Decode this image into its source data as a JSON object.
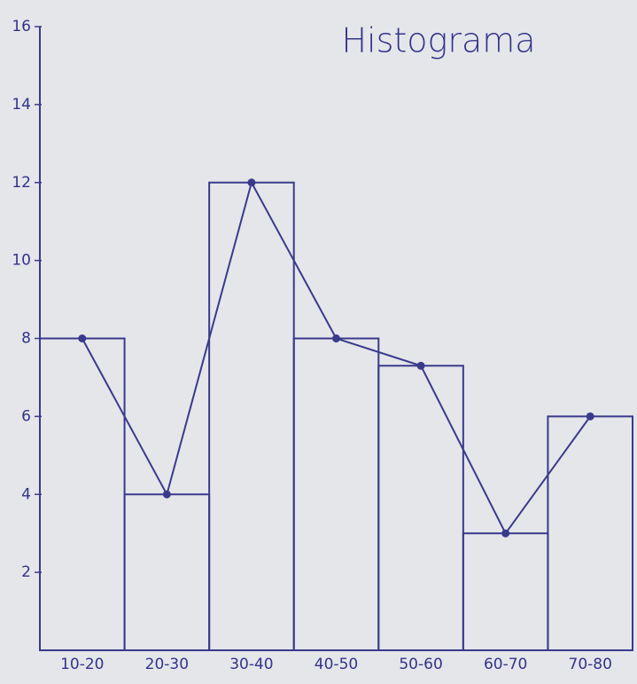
{
  "chart_data": {
    "type": "bar",
    "title": "Histograma",
    "categories": [
      "10-20",
      "20-30",
      "30-40",
      "40-50",
      "50-60",
      "60-70",
      "70-80"
    ],
    "values": [
      8,
      4,
      12,
      8,
      7.3,
      3,
      6
    ],
    "color": "#3a3a8c",
    "ylim": [
      0,
      16
    ],
    "yticks": [
      2,
      4,
      6,
      8,
      10,
      12,
      14,
      16
    ],
    "frequency_polygon": true
  }
}
